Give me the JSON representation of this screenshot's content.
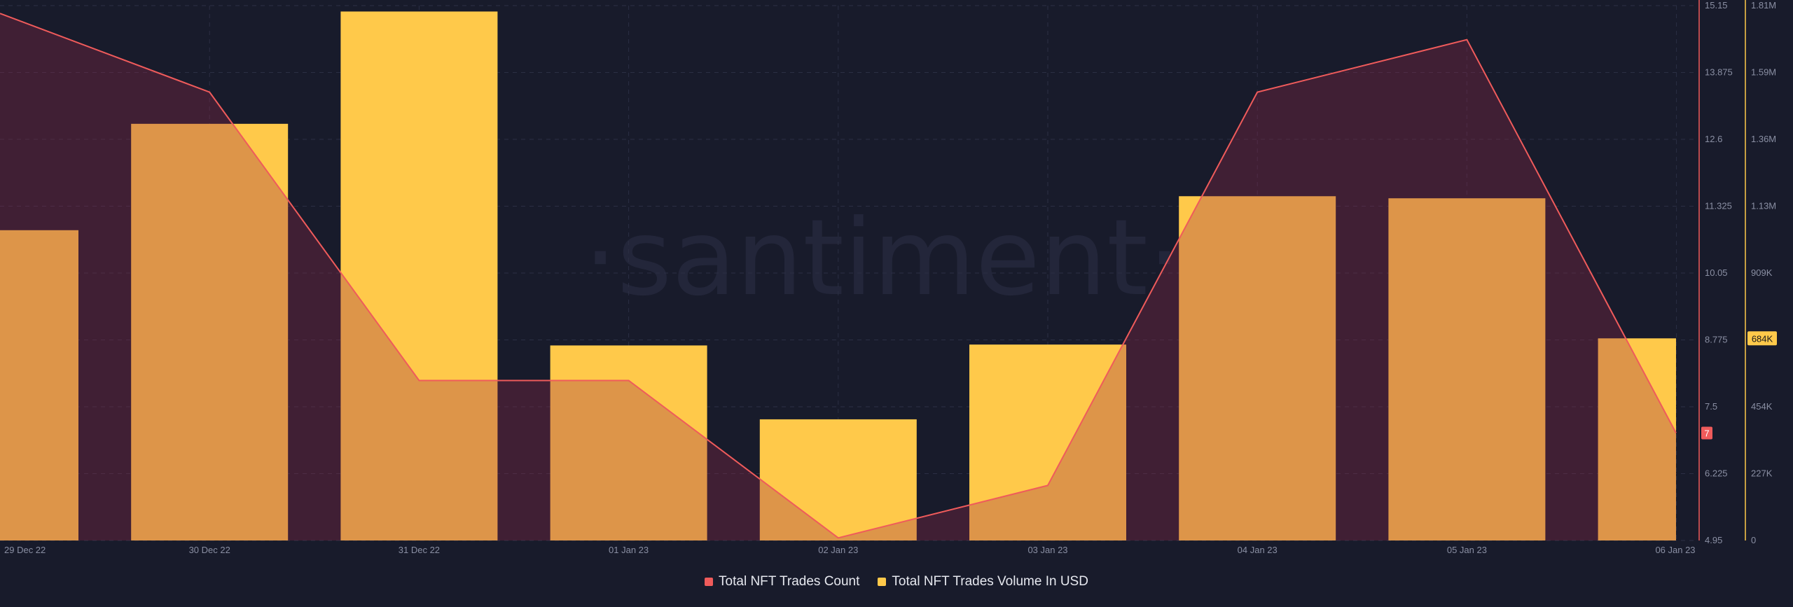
{
  "watermark": "·santiment·",
  "chart_data": {
    "type": "bar",
    "categories": [
      "29 Dec 22",
      "30 Dec 22",
      "31 Dec 22",
      "01 Jan 23",
      "02 Jan 23",
      "03 Jan 23",
      "04 Jan 23",
      "05 Jan 23",
      "06 Jan 23"
    ],
    "series": [
      {
        "name": "Total NFT Trades Count",
        "type": "area-line",
        "color": "#ef5b5b",
        "axis": "left",
        "values": [
          15,
          13.5,
          8,
          8,
          5,
          6,
          13.5,
          14.5,
          7
        ]
      },
      {
        "name": "Total NFT Trades Volume In USD",
        "type": "bar",
        "color": "#ffc94a",
        "axis": "right",
        "values": [
          1050000,
          1410000,
          1790000,
          660000,
          410000,
          663000,
          1165000,
          1158000,
          684000
        ]
      }
    ],
    "y_left": {
      "ticks": [
        "15.15",
        "13.875",
        "12.6",
        "11.325",
        "10.05",
        "8.775",
        "7.5",
        "6.225",
        "4.95"
      ],
      "ylim": [
        4.95,
        15.15
      ]
    },
    "y_right": {
      "ticks": [
        "1.81M",
        "1.59M",
        "1.36M",
        "1.13M",
        "909K",
        "684K",
        "454K",
        "227K",
        "0"
      ],
      "ylim": [
        0,
        1810000
      ]
    },
    "last_value_labels": {
      "count": "7",
      "volume": "684K"
    },
    "grid": true,
    "legend_position": "bottom-center"
  }
}
